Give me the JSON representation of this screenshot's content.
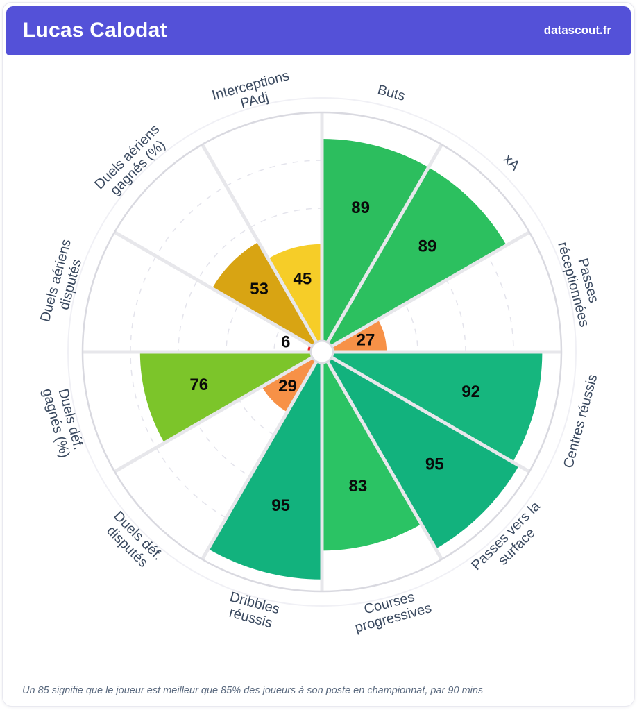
{
  "header": {
    "title": "Lucas Calodat",
    "brand": "datascout.fr",
    "accent_color": "#5451d8"
  },
  "footer": {
    "note": "Un 85 signifie que le joueur est meilleur que 85% des joueurs à son poste en championnat, par 90 mins"
  },
  "chart_data": {
    "type": "pie",
    "subtype": "pizza-percentile-polar-bars",
    "title": "Lucas Calodat",
    "rlim": [
      0,
      100
    ],
    "grid": "dashed concentric rings at 20/40/60/80, solid outer ring at 100",
    "legend_position": "none",
    "slices_clockwise_from_top": true,
    "categories": [
      "Buts",
      "xA",
      "Passes réceptionnées",
      "Centres réussis",
      "Passes vers la surface",
      "Courses progressives",
      "Dribbles réussis",
      "Duels déf. disputés",
      "Duels déf. gagnés (%)",
      "Duels aériens disputés",
      "Duels aériens gagnés (%)",
      "Interceptions PAdj"
    ],
    "values": [
      89,
      89,
      27,
      92,
      95,
      83,
      95,
      29,
      76,
      6,
      53,
      45
    ],
    "colors": [
      "#2cbe5e",
      "#2cc05f",
      "#f79147",
      "#16b67e",
      "#12b27d",
      "#2bc364",
      "#12b27d",
      "#f79147",
      "#7cc52a",
      "#ee2326",
      "#d8a413",
      "#f6cd28"
    ],
    "label_lines": [
      [
        "Buts"
      ],
      [
        "xA"
      ],
      [
        "Passes",
        "réceptionnées"
      ],
      [
        "Centres réussis"
      ],
      [
        "Passes vers la",
        "surface"
      ],
      [
        "Courses",
        "progressives"
      ],
      [
        "Dribbles",
        "réussis"
      ],
      [
        "Duels déf.",
        "disputés"
      ],
      [
        "Duels déf.",
        "gagnés (%)"
      ],
      [
        "Duels aériens",
        "disputés"
      ],
      [
        "Duels aériens",
        "gagnés (%)"
      ],
      [
        "Interceptions",
        "PAdj"
      ]
    ],
    "grid_color": "#e4e4ec",
    "spoke_color": "#e7e7eb",
    "outer_ring_color": "#d9d9e0",
    "param_label_color": "#3b4a60",
    "value_label_color": "#0a0a0a"
  }
}
